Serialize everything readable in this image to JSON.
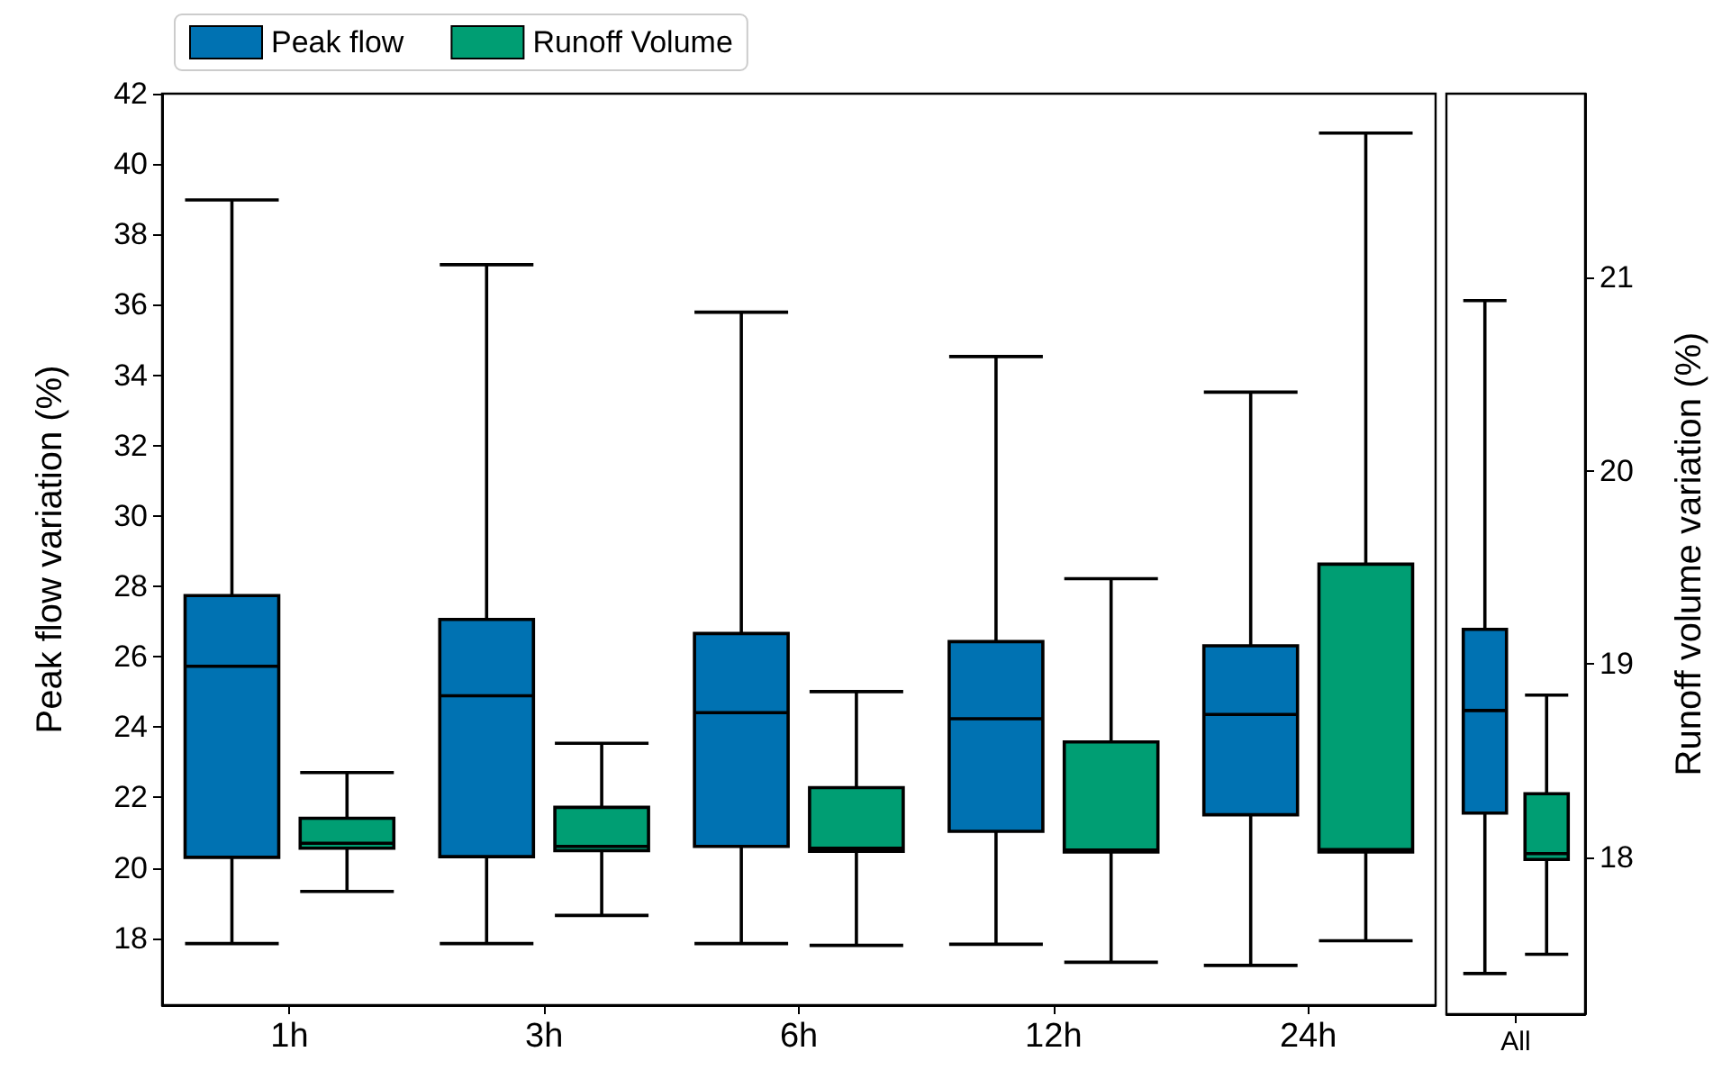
{
  "chart_data": [
    {
      "type": "box",
      "ylabel": "Peak flow variation (%)",
      "categories": [
        "1h",
        "3h",
        "6h",
        "12h",
        "24h"
      ],
      "ylim": [
        16.1,
        42
      ],
      "yticks": [
        18,
        20,
        22,
        24,
        26,
        28,
        30,
        32,
        34,
        36,
        38,
        40,
        42
      ],
      "grid": false,
      "legend": "top left",
      "series": [
        {
          "name": "Peak flow",
          "color": "#0072b2",
          "boxes": [
            {
              "low": 17.85,
              "q1": 20.3,
              "median": 25.73,
              "q3": 27.74,
              "high": 38.98
            },
            {
              "low": 17.85,
              "q1": 20.32,
              "median": 24.89,
              "q3": 27.06,
              "high": 37.14
            },
            {
              "low": 17.85,
              "q1": 20.61,
              "median": 24.41,
              "q3": 26.66,
              "high": 35.79
            },
            {
              "low": 17.83,
              "q1": 21.04,
              "median": 24.24,
              "q3": 26.43,
              "high": 34.53
            },
            {
              "low": 17.23,
              "q1": 21.51,
              "median": 24.36,
              "q3": 26.31,
              "high": 33.52
            }
          ]
        },
        {
          "name": "Runoff Volume",
          "color": "#009e73",
          "boxes": [
            {
              "low": 19.33,
              "q1": 20.56,
              "median": 20.7,
              "q3": 21.41,
              "high": 22.71
            },
            {
              "low": 18.65,
              "q1": 20.49,
              "median": 20.61,
              "q3": 21.72,
              "high": 23.54
            },
            {
              "low": 17.8,
              "q1": 20.47,
              "median": 20.56,
              "q3": 22.28,
              "high": 25.01
            },
            {
              "low": 17.32,
              "q1": 20.45,
              "median": 20.51,
              "q3": 23.58,
              "high": 28.22
            },
            {
              "low": 17.93,
              "q1": 20.45,
              "median": 20.52,
              "q3": 28.63,
              "high": 40.88
            }
          ]
        }
      ]
    },
    {
      "type": "box",
      "y2label": "Runoff volume variation (%)",
      "categories": [
        "All"
      ],
      "y2lim": [
        17.19,
        21.95
      ],
      "y2ticks": [
        18,
        19,
        20,
        21
      ],
      "grid": false,
      "series": [
        {
          "color": "#0072b2",
          "axis": "y2",
          "boxes": [
            {
              "low": 17.4,
              "q1": 18.23,
              "median": 18.76,
              "q3": 19.18,
              "high": 20.88
            }
          ]
        },
        {
          "color": "#009e73",
          "axis": "y2",
          "boxes": [
            {
              "low": 17.5,
              "q1": 17.99,
              "median": 18.02,
              "q3": 18.33,
              "high": 18.84
            }
          ]
        }
      ]
    }
  ]
}
